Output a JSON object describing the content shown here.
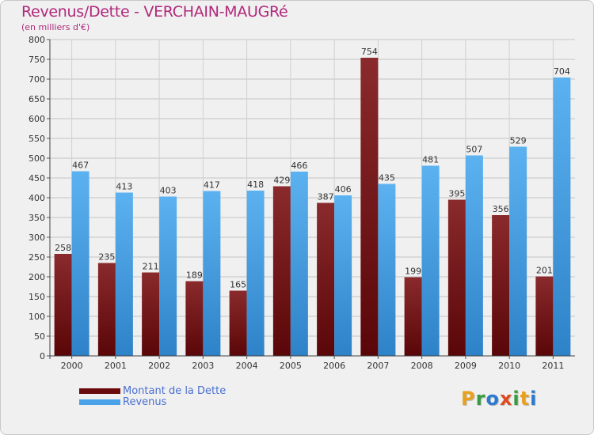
{
  "title": "Revenus/Dette - VERCHAIN-MAUGRé",
  "subtitle": "(en milliers d'€)",
  "chart_data": {
    "type": "bar",
    "title": "Revenus/Dette - VERCHAIN-MAUGRé",
    "ylabel": "(en milliers d'€)",
    "xlabel": "",
    "ylim": [
      0,
      800
    ],
    "yticks": [
      0,
      50,
      100,
      150,
      200,
      250,
      300,
      350,
      400,
      450,
      500,
      550,
      600,
      650,
      700,
      750,
      800
    ],
    "categories": [
      "2000",
      "2001",
      "2002",
      "2003",
      "2004",
      "2005",
      "2006",
      "2007",
      "2008",
      "2009",
      "2010",
      "2011"
    ],
    "series": [
      {
        "name": "Montant de la Dette",
        "color": "#7a1a1c",
        "values": [
          258,
          235,
          211,
          189,
          165,
          429,
          387,
          754,
          199,
          395,
          356,
          201
        ]
      },
      {
        "name": "Revenus",
        "color": "#4aa3e8",
        "values": [
          467,
          413,
          403,
          417,
          418,
          466,
          406,
          435,
          481,
          507,
          529,
          704
        ]
      }
    ],
    "grid": true,
    "legend": "bottom-left"
  },
  "legend": {
    "debt_label": "Montant de la Dette",
    "revenue_label": "Revenus",
    "debt_color": "#6a0a0c",
    "revenue_color": "#4aa3e8"
  },
  "logo": {
    "letters": [
      "P",
      "r",
      "o",
      "x",
      "i",
      "t",
      "i"
    ],
    "colors": [
      "#e8a020",
      "#3a9a40",
      "#2a7ad0",
      "#e04a20",
      "#3a9a40",
      "#e8a020",
      "#2a7ad0"
    ]
  }
}
